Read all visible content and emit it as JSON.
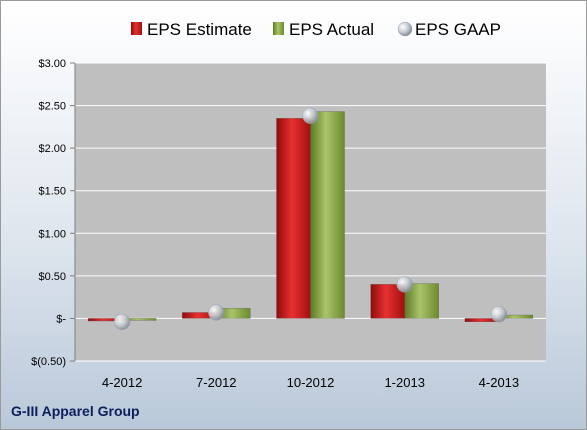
{
  "company_label": "G-III Apparel Group",
  "colors": {
    "estimate": "#d01c1c",
    "actual": "#8caa48",
    "gaap": "#c9ced6",
    "plot_bg": "#bfbfbf",
    "gridline": "#ffffff"
  },
  "chart_data": {
    "type": "bar",
    "categories": [
      "4-2012",
      "7-2012",
      "10-2012",
      "1-2013",
      "4-2013"
    ],
    "series": [
      {
        "name": "EPS Estimate",
        "kind": "bar",
        "values": [
          -0.03,
          0.07,
          2.35,
          0.4,
          -0.04
        ]
      },
      {
        "name": "EPS Actual",
        "kind": "bar",
        "values": [
          -0.02,
          0.12,
          2.43,
          0.41,
          0.04
        ]
      },
      {
        "name": "EPS GAAP",
        "kind": "marker",
        "values": [
          -0.04,
          0.07,
          2.38,
          0.4,
          0.05
        ]
      }
    ],
    "ylim": [
      -0.5,
      3.0
    ],
    "yticks": [
      -0.5,
      0,
      0.5,
      1.0,
      1.5,
      2.0,
      2.5,
      3.0
    ],
    "ytick_labels": [
      "$(0.50)",
      "$-",
      "$0.50",
      "$1.00",
      "$1.50",
      "$2.00",
      "$2.50",
      "$3.00"
    ],
    "grid": true,
    "legend_position": "top"
  }
}
